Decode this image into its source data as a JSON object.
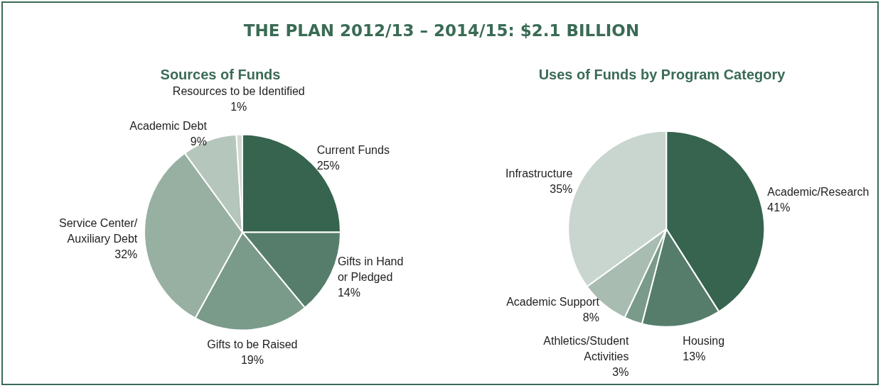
{
  "chart_data": [
    {
      "type": "pie",
      "title": "THE PLAN 2012/13 – 2014/15:  $2.1 BILLION",
      "subtitle": "Sources of Funds",
      "categories": [
        "Current Funds",
        "Gifts in Hand\nor Pledged",
        "Gifts to be Raised",
        "Service Center/\nAuxiliary Debt",
        "Academic Debt",
        "Resources to be Identified"
      ],
      "values": [
        25,
        14,
        19,
        32,
        9,
        1
      ],
      "colors": [
        "#36644f",
        "#567d6b",
        "#7a9a8a",
        "#97b0a2",
        "#b5c6bc",
        "#d0dbd4"
      ],
      "value_labels": [
        "25%",
        "14%",
        "19%",
        "32%",
        "9%",
        "1%"
      ],
      "legend": false
    },
    {
      "type": "pie",
      "title": "Uses of Funds by Program Category",
      "categories": [
        "Academic/Research",
        "Housing",
        "Athletics/Student\nActivities",
        "Academic Support",
        "Infrastructure"
      ],
      "values": [
        41,
        13,
        3,
        8,
        35
      ],
      "colors": [
        "#36644f",
        "#567d6b",
        "#7a9a8a",
        "#a8bcb1",
        "#c9d6cf"
      ],
      "value_labels": [
        "41%",
        "13%",
        "3%",
        "8%",
        "35%"
      ],
      "legend": false
    }
  ]
}
